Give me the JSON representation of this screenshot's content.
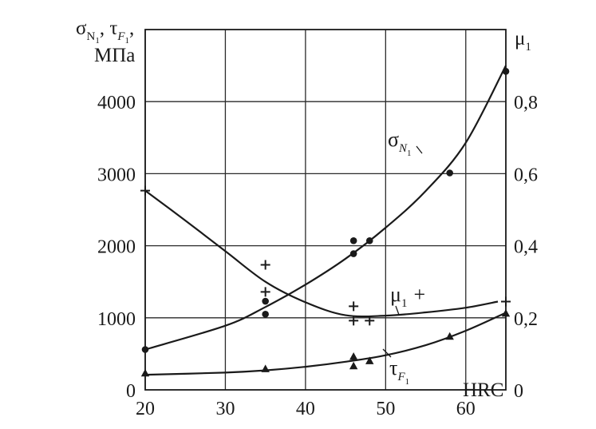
{
  "chart_data": {
    "type": "scatter",
    "x_axis": {
      "label": "HRC",
      "range": [
        20,
        65
      ],
      "ticks": [
        "20",
        "30",
        "40",
        "50",
        "60"
      ]
    },
    "y_left_axis": {
      "label": {
        "symbol1": "σ",
        "sub1": "N",
        "subsub1": "1",
        "sep": ", ",
        "symbol2": "τ",
        "sub2": "F",
        "subsub2": "1",
        "end": ",",
        "unit": "МПа"
      },
      "range": [
        0,
        5000
      ],
      "ticks": [
        "0",
        "1000",
        "2000",
        "3000",
        "4000"
      ]
    },
    "y_right_axis": {
      "label": {
        "symbol": "μ",
        "sub": "1"
      },
      "range": [
        0,
        1.0
      ],
      "ticks": [
        "0",
        "0,2",
        "0,4",
        "0,6",
        "0,8"
      ]
    },
    "grid": true,
    "series": [
      {
        "key": "sigma",
        "label": {
          "symbol": "σ",
          "sub": "N",
          "subsub": "1"
        },
        "axis": "left",
        "marker": "circle",
        "points": [
          [
            20,
            560
          ],
          [
            35,
            1230
          ],
          [
            35,
            1050
          ],
          [
            46,
            2070
          ],
          [
            46,
            1890
          ],
          [
            48,
            2070
          ],
          [
            58,
            3010
          ],
          [
            65,
            4420
          ]
        ],
        "curve": [
          [
            20,
            560
          ],
          [
            30,
            890
          ],
          [
            35,
            1150
          ],
          [
            40,
            1460
          ],
          [
            45,
            1820
          ],
          [
            50,
            2250
          ],
          [
            55,
            2760
          ],
          [
            60,
            3430
          ],
          [
            65,
            4500
          ]
        ]
      },
      {
        "key": "mu",
        "label": {
          "symbol": "μ",
          "sub": "1",
          "mark": "+"
        },
        "axis": "right",
        "marker": "plus",
        "points": [
          [
            20,
            0.553
          ],
          [
            35,
            0.347
          ],
          [
            35,
            0.272
          ],
          [
            46,
            0.232
          ],
          [
            46,
            0.192
          ],
          [
            48,
            0.192
          ],
          [
            65,
            0.245
          ]
        ],
        "curve": [
          [
            20,
            0.553
          ],
          [
            25,
            0.47
          ],
          [
            30,
            0.385
          ],
          [
            35,
            0.3
          ],
          [
            40,
            0.243
          ],
          [
            45,
            0.207
          ],
          [
            50,
            0.206
          ],
          [
            55,
            0.215
          ],
          [
            60,
            0.228
          ],
          [
            64,
            0.245
          ]
        ]
      },
      {
        "key": "tau",
        "label": {
          "symbol": "τ",
          "sub": "F",
          "subsub": "1"
        },
        "axis": "left",
        "marker": "triangle",
        "points": [
          [
            20,
            230
          ],
          [
            35,
            290
          ],
          [
            46,
            460
          ],
          [
            46,
            330
          ],
          [
            48,
            400
          ],
          [
            58,
            740
          ],
          [
            65,
            1060
          ]
        ],
        "curve": [
          [
            20,
            210
          ],
          [
            30,
            240
          ],
          [
            35,
            270
          ],
          [
            40,
            320
          ],
          [
            45,
            390
          ],
          [
            50,
            480
          ],
          [
            55,
            620
          ],
          [
            60,
            820
          ],
          [
            65,
            1070
          ]
        ]
      }
    ]
  }
}
